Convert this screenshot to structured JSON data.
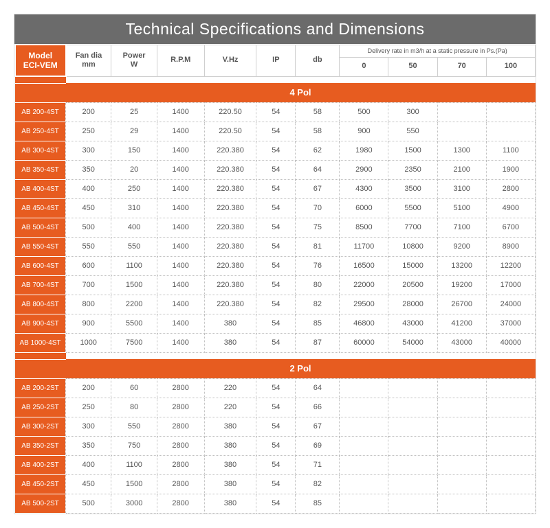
{
  "title": "Technical Specifications and Dimensions",
  "header": {
    "model": "Model\nECI-VEM",
    "fan_dia": "Fan dia\nmm",
    "power": "Power\nW",
    "rpm": "R.P.M",
    "vhz": "V.Hz",
    "ip": "IP",
    "db": "db",
    "delivery_sup": "Delivery rate in m3/h at a static pressure in Ps.(Pa)",
    "d0": "0",
    "d50": "50",
    "d70": "70",
    "d100": "100"
  },
  "section_4pol": "4 Pol",
  "section_2pol": "2 Pol",
  "rows4": [
    {
      "model": "AB 200-4ST",
      "fan": "200",
      "pow": "25",
      "rpm": "1400",
      "vhz": "220.50",
      "ip": "54",
      "db": "58",
      "d0": "500",
      "d50": "300",
      "d70": "",
      "d100": ""
    },
    {
      "model": "AB 250-4ST",
      "fan": "250",
      "pow": "29",
      "rpm": "1400",
      "vhz": "220.50",
      "ip": "54",
      "db": "58",
      "d0": "900",
      "d50": "550",
      "d70": "",
      "d100": ""
    },
    {
      "model": "AB 300-4ST",
      "fan": "300",
      "pow": "150",
      "rpm": "1400",
      "vhz": "220.380",
      "ip": "54",
      "db": "62",
      "d0": "1980",
      "d50": "1500",
      "d70": "1300",
      "d100": "1100"
    },
    {
      "model": "AB 350-4ST",
      "fan": "350",
      "pow": "20",
      "rpm": "1400",
      "vhz": "220.380",
      "ip": "54",
      "db": "64",
      "d0": "2900",
      "d50": "2350",
      "d70": "2100",
      "d100": "1900"
    },
    {
      "model": "AB 400-4ST",
      "fan": "400",
      "pow": "250",
      "rpm": "1400",
      "vhz": "220.380",
      "ip": "54",
      "db": "67",
      "d0": "4300",
      "d50": "3500",
      "d70": "3100",
      "d100": "2800"
    },
    {
      "model": "AB 450-4ST",
      "fan": "450",
      "pow": "310",
      "rpm": "1400",
      "vhz": "220.380",
      "ip": "54",
      "db": "70",
      "d0": "6000",
      "d50": "5500",
      "d70": "5100",
      "d100": "4900"
    },
    {
      "model": "AB 500-4ST",
      "fan": "500",
      "pow": "400",
      "rpm": "1400",
      "vhz": "220.380",
      "ip": "54",
      "db": "75",
      "d0": "8500",
      "d50": "7700",
      "d70": "7100",
      "d100": "6700"
    },
    {
      "model": "AB 550-4ST",
      "fan": "550",
      "pow": "550",
      "rpm": "1400",
      "vhz": "220.380",
      "ip": "54",
      "db": "81",
      "d0": "11700",
      "d50": "10800",
      "d70": "9200",
      "d100": "8900"
    },
    {
      "model": "AB 600-4ST",
      "fan": "600",
      "pow": "1100",
      "rpm": "1400",
      "vhz": "220.380",
      "ip": "54",
      "db": "76",
      "d0": "16500",
      "d50": "15000",
      "d70": "13200",
      "d100": "12200"
    },
    {
      "model": "AB 700-4ST",
      "fan": "700",
      "pow": "1500",
      "rpm": "1400",
      "vhz": "220.380",
      "ip": "54",
      "db": "80",
      "d0": "22000",
      "d50": "20500",
      "d70": "19200",
      "d100": "17000"
    },
    {
      "model": "AB 800-4ST",
      "fan": "800",
      "pow": "2200",
      "rpm": "1400",
      "vhz": "220.380",
      "ip": "54",
      "db": "82",
      "d0": "29500",
      "d50": "28000",
      "d70": "26700",
      "d100": "24000"
    },
    {
      "model": "AB 900-4ST",
      "fan": "900",
      "pow": "5500",
      "rpm": "1400",
      "vhz": "380",
      "ip": "54",
      "db": "85",
      "d0": "46800",
      "d50": "43000",
      "d70": "41200",
      "d100": "37000"
    },
    {
      "model": "AB 1000-4ST",
      "fan": "1000",
      "pow": "7500",
      "rpm": "1400",
      "vhz": "380",
      "ip": "54",
      "db": "87",
      "d0": "60000",
      "d50": "54000",
      "d70": "43000",
      "d100": "40000"
    }
  ],
  "rows2": [
    {
      "model": "AB 200-2ST",
      "fan": "200",
      "pow": "60",
      "rpm": "2800",
      "vhz": "220",
      "ip": "54",
      "db": "64",
      "d0": "",
      "d50": "",
      "d70": "",
      "d100": ""
    },
    {
      "model": "AB 250-2ST",
      "fan": "250",
      "pow": "80",
      "rpm": "2800",
      "vhz": "220",
      "ip": "54",
      "db": "66",
      "d0": "",
      "d50": "",
      "d70": "",
      "d100": ""
    },
    {
      "model": "AB 300-2ST",
      "fan": "300",
      "pow": "550",
      "rpm": "2800",
      "vhz": "380",
      "ip": "54",
      "db": "67",
      "d0": "",
      "d50": "",
      "d70": "",
      "d100": ""
    },
    {
      "model": "AB 350-2ST",
      "fan": "350",
      "pow": "750",
      "rpm": "2800",
      "vhz": "380",
      "ip": "54",
      "db": "69",
      "d0": "",
      "d50": "",
      "d70": "",
      "d100": ""
    },
    {
      "model": "AB 400-2ST",
      "fan": "400",
      "pow": "1100",
      "rpm": "2800",
      "vhz": "380",
      "ip": "54",
      "db": "71",
      "d0": "",
      "d50": "",
      "d70": "",
      "d100": ""
    },
    {
      "model": "AB 450-2ST",
      "fan": "450",
      "pow": "1500",
      "rpm": "2800",
      "vhz": "380",
      "ip": "54",
      "db": "82",
      "d0": "",
      "d50": "",
      "d70": "",
      "d100": ""
    },
    {
      "model": "AB 500-2ST",
      "fan": "500",
      "pow": "3000",
      "rpm": "2800",
      "vhz": "380",
      "ip": "54",
      "db": "85",
      "d0": "",
      "d50": "",
      "d70": "",
      "d100": ""
    }
  ],
  "style": {
    "title_bg": "#6b6b6b",
    "accent": "#e75c20",
    "border": "#bfbfbf",
    "text": "#555555",
    "bg": "#ffffff"
  }
}
